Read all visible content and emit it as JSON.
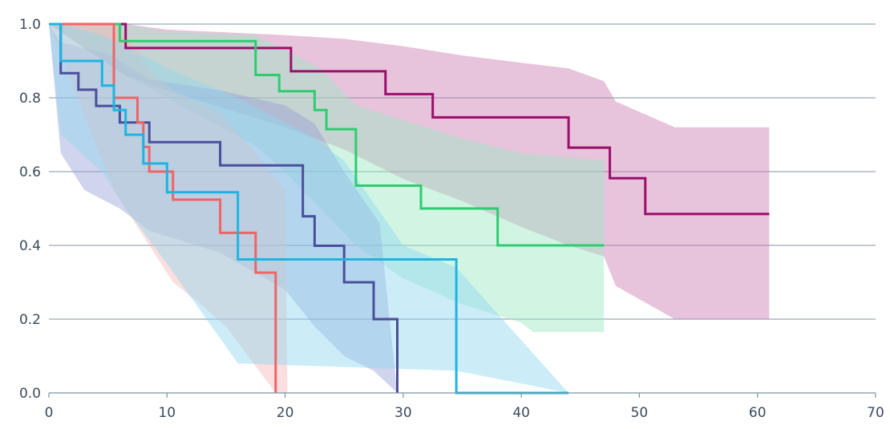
{
  "chart_data": {
    "type": "line",
    "subtype": "kaplan-meier-step",
    "title": "",
    "xlabel": "",
    "ylabel": "",
    "xlim": [
      0,
      70
    ],
    "ylim": [
      0,
      1
    ],
    "x_ticks": [
      0,
      10,
      20,
      30,
      40,
      50,
      60,
      70
    ],
    "y_ticks": [
      0.0,
      0.2,
      0.4,
      0.6,
      0.8,
      1.0
    ],
    "x_tick_labels": [
      "0",
      "10",
      "20",
      "30",
      "40",
      "50",
      "60",
      "70"
    ],
    "y_tick_labels": [
      "0.0",
      "0.2",
      "0.4",
      "0.6",
      "0.8",
      "1.0"
    ],
    "grid": "horizontal",
    "legend": "none",
    "series": [
      {
        "name": "magenta",
        "color": "#9b0e6b",
        "band_color": "#cc79b2",
        "steps": [
          [
            0,
            1.0
          ],
          [
            6.5,
            0.935
          ],
          [
            20.5,
            0.872
          ],
          [
            28.5,
            0.81
          ],
          [
            32.5,
            0.747
          ],
          [
            44,
            0.665
          ],
          [
            47.5,
            0.582
          ],
          [
            50.5,
            0.485
          ],
          [
            61,
            0.485
          ]
        ],
        "upper": [
          [
            0,
            1.0
          ],
          [
            6.5,
            1.0
          ],
          [
            10,
            0.985
          ],
          [
            20,
            0.97
          ],
          [
            25,
            0.96
          ],
          [
            30,
            0.94
          ],
          [
            35,
            0.915
          ],
          [
            40,
            0.895
          ],
          [
            44,
            0.88
          ],
          [
            47,
            0.845
          ],
          [
            48,
            0.79
          ],
          [
            53,
            0.72
          ],
          [
            61,
            0.72
          ]
        ],
        "lower": [
          [
            0,
            1.0
          ],
          [
            6.5,
            0.86
          ],
          [
            10,
            0.82
          ],
          [
            20,
            0.72
          ],
          [
            25,
            0.66
          ],
          [
            30,
            0.58
          ],
          [
            35,
            0.52
          ],
          [
            40,
            0.45
          ],
          [
            44,
            0.4
          ],
          [
            47,
            0.37
          ],
          [
            48,
            0.29
          ],
          [
            53,
            0.2
          ],
          [
            61,
            0.2
          ]
        ]
      },
      {
        "name": "green",
        "color": "#2ecc71",
        "band_color": "#9be8c0",
        "steps": [
          [
            0,
            1.0
          ],
          [
            6.0,
            0.954
          ],
          [
            17.5,
            0.862
          ],
          [
            19.5,
            0.818
          ],
          [
            22.5,
            0.767
          ],
          [
            23.5,
            0.715
          ],
          [
            26,
            0.562
          ],
          [
            31.5,
            0.5
          ],
          [
            38,
            0.4
          ],
          [
            47,
            0.4
          ]
        ],
        "upper": [
          [
            0,
            1.0
          ],
          [
            6,
            1.0
          ],
          [
            10,
            0.98
          ],
          [
            17.5,
            0.97
          ],
          [
            20,
            0.93
          ],
          [
            23,
            0.88
          ],
          [
            26,
            0.78
          ],
          [
            30,
            0.74
          ],
          [
            35,
            0.69
          ],
          [
            40,
            0.65
          ],
          [
            47,
            0.63
          ]
        ],
        "lower": [
          [
            0,
            1.0
          ],
          [
            6,
            0.87
          ],
          [
            10,
            0.8
          ],
          [
            17.5,
            0.67
          ],
          [
            20,
            0.6
          ],
          [
            23,
            0.5
          ],
          [
            26,
            0.4
          ],
          [
            30,
            0.31
          ],
          [
            35,
            0.24
          ],
          [
            40,
            0.19
          ],
          [
            41,
            0.165
          ],
          [
            47,
            0.165
          ]
        ]
      },
      {
        "name": "indigo",
        "color": "#4b4f9a",
        "band_color": "#9aa0d8",
        "steps": [
          [
            0,
            1.0
          ],
          [
            1,
            0.867
          ],
          [
            2.5,
            0.822
          ],
          [
            4,
            0.778
          ],
          [
            6,
            0.733
          ],
          [
            8.5,
            0.68
          ],
          [
            14.5,
            0.617
          ],
          [
            21.5,
            0.479
          ],
          [
            22.5,
            0.399
          ],
          [
            25,
            0.3
          ],
          [
            27.5,
            0.2
          ],
          [
            29.5,
            0.0
          ]
        ],
        "upper": [
          [
            0,
            1.0
          ],
          [
            1,
            0.95
          ],
          [
            5,
            0.92
          ],
          [
            8.5,
            0.85
          ],
          [
            14.5,
            0.82
          ],
          [
            20,
            0.78
          ],
          [
            22.5,
            0.73
          ],
          [
            25,
            0.6
          ],
          [
            28,
            0.46
          ],
          [
            29.5,
            0.0
          ]
        ],
        "lower": [
          [
            0,
            1.0
          ],
          [
            1,
            0.65
          ],
          [
            3,
            0.55
          ],
          [
            6,
            0.5
          ],
          [
            8.5,
            0.44
          ],
          [
            14.5,
            0.38
          ],
          [
            20,
            0.28
          ],
          [
            22.5,
            0.18
          ],
          [
            25,
            0.1
          ],
          [
            27.5,
            0.06
          ],
          [
            29.5,
            0.0
          ]
        ]
      },
      {
        "name": "red",
        "color": "#f06464",
        "band_color": "#f7b5b5",
        "steps": [
          [
            0,
            1.0
          ],
          [
            5.5,
            0.8
          ],
          [
            7.5,
            0.733
          ],
          [
            8,
            0.667
          ],
          [
            8.5,
            0.6
          ],
          [
            10.5,
            0.524
          ],
          [
            14.5,
            0.434
          ],
          [
            17.5,
            0.326
          ],
          [
            19.2,
            0.0
          ]
        ],
        "upper": [
          [
            0,
            1.0
          ],
          [
            5.5,
            1.0
          ],
          [
            7.5,
            0.93
          ],
          [
            8.5,
            0.87
          ],
          [
            10.5,
            0.82
          ],
          [
            14.5,
            0.76
          ],
          [
            17.5,
            0.65
          ],
          [
            20,
            0.55
          ],
          [
            20.2,
            0.0
          ]
        ],
        "lower": [
          [
            0,
            1.0
          ],
          [
            5.5,
            0.55
          ],
          [
            7.5,
            0.45
          ],
          [
            8.5,
            0.4
          ],
          [
            10.5,
            0.3
          ],
          [
            12.5,
            0.25
          ],
          [
            15,
            0.18
          ],
          [
            19.2,
            0.0
          ]
        ]
      },
      {
        "name": "cyan",
        "color": "#1eb4e1",
        "band_color": "#8dd6f0",
        "steps": [
          [
            0,
            1.0
          ],
          [
            1,
            0.9
          ],
          [
            4.5,
            0.833
          ],
          [
            5.5,
            0.767
          ],
          [
            6.5,
            0.7
          ],
          [
            8,
            0.622
          ],
          [
            10,
            0.544
          ],
          [
            16,
            0.362
          ],
          [
            34.5,
            0.0
          ],
          [
            44,
            0.0
          ]
        ],
        "upper": [
          [
            0,
            1.0
          ],
          [
            1,
            1.0
          ],
          [
            4.5,
            0.97
          ],
          [
            6.5,
            0.94
          ],
          [
            10,
            0.88
          ],
          [
            16,
            0.8
          ],
          [
            22,
            0.7
          ],
          [
            25,
            0.63
          ],
          [
            30,
            0.4
          ],
          [
            34.5,
            0.34
          ],
          [
            44,
            0.0
          ]
        ],
        "lower": [
          [
            0,
            1.0
          ],
          [
            1,
            0.7
          ],
          [
            4.5,
            0.6
          ],
          [
            6.5,
            0.5
          ],
          [
            10,
            0.35
          ],
          [
            16,
            0.08
          ],
          [
            34.5,
            0.06
          ],
          [
            44,
            0.0
          ]
        ]
      }
    ]
  }
}
